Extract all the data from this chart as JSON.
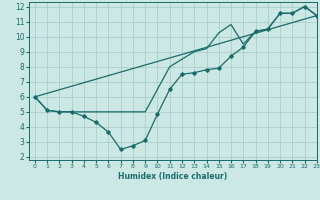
{
  "xlabel": "Humidex (Indice chaleur)",
  "background_color": "#cce8e4",
  "grid_color": "#aaceca",
  "line_color": "#1a6b6b",
  "xlim": [
    -0.5,
    23
  ],
  "ylim": [
    1.8,
    12.3
  ],
  "xticks": [
    0,
    1,
    2,
    3,
    4,
    5,
    6,
    7,
    8,
    9,
    10,
    11,
    12,
    13,
    14,
    15,
    16,
    17,
    18,
    19,
    20,
    21,
    22,
    23
  ],
  "yticks": [
    2,
    3,
    4,
    5,
    6,
    7,
    8,
    9,
    10,
    11,
    12
  ],
  "line1_x": [
    0,
    1,
    2,
    3,
    4,
    5,
    6,
    7,
    8,
    9,
    10,
    11,
    12,
    13,
    14,
    15,
    16,
    17,
    18,
    19,
    20,
    21,
    22,
    23
  ],
  "line1_y": [
    6.0,
    5.1,
    5.0,
    5.0,
    4.7,
    4.3,
    3.65,
    2.5,
    2.75,
    3.1,
    4.85,
    6.5,
    7.5,
    7.6,
    7.8,
    7.9,
    8.7,
    9.3,
    10.35,
    10.5,
    11.55,
    11.55,
    12.0,
    11.4
  ],
  "line2_x": [
    0,
    1,
    2,
    3,
    9,
    10,
    11,
    12,
    13,
    14,
    15,
    16,
    17,
    18,
    19,
    20,
    21,
    22,
    23
  ],
  "line2_y": [
    6.0,
    5.1,
    5.0,
    5.0,
    5.0,
    6.5,
    8.0,
    8.5,
    9.0,
    9.2,
    10.25,
    10.8,
    9.5,
    10.35,
    10.5,
    11.55,
    11.55,
    12.0,
    11.4
  ],
  "line3_x": [
    0,
    23
  ],
  "line3_y": [
    6.0,
    11.4
  ]
}
